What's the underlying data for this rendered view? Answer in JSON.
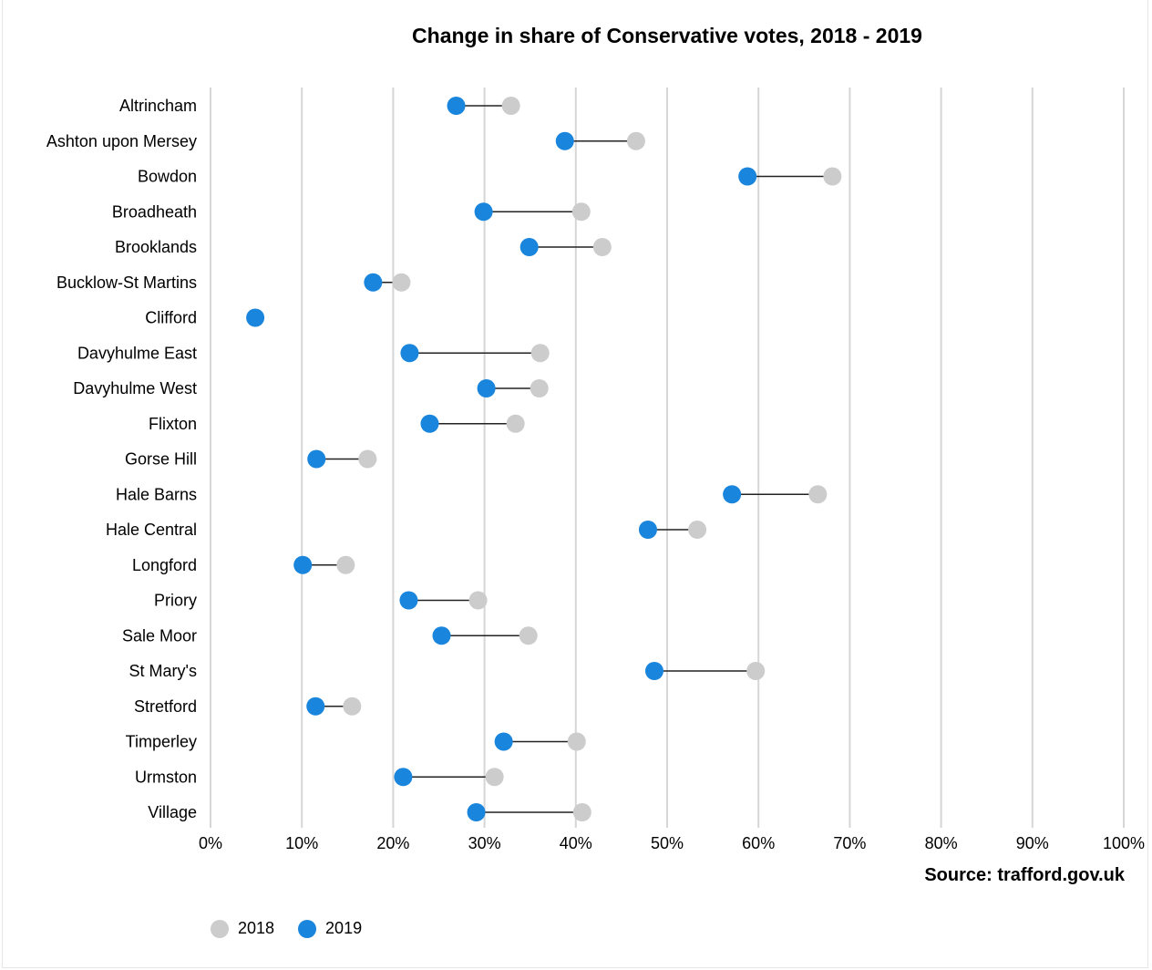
{
  "chart_data": {
    "type": "dumbbell",
    "title": "Change in share of Conservative votes, 2018 - 2019",
    "source": "Source: trafford.gov.uk",
    "xlim": [
      0,
      100
    ],
    "x_ticks": [
      "0%",
      "10%",
      "20%",
      "30%",
      "40%",
      "50%",
      "60%",
      "70%",
      "80%",
      "90%",
      "100%"
    ],
    "grid": true,
    "legend_position": "bottom-left",
    "series": [
      {
        "name": "2018",
        "color": "#cccccc"
      },
      {
        "name": "2019",
        "color": "#1a85dc"
      }
    ],
    "categories": [
      "Altrincham",
      "Ashton upon Mersey",
      "Bowdon",
      "Broadheath",
      "Brooklands",
      "Bucklow-St Martins",
      "Clifford",
      "Davyhulme East",
      "Davyhulme West",
      "Flixton",
      "Gorse Hill",
      "Hale Barns",
      "Hale Central",
      "Longford",
      "Priory",
      "Sale Moor",
      "St Mary's",
      "Stretford",
      "Timperley",
      "Urmston",
      "Village"
    ],
    "values_2018": [
      32.9,
      46.6,
      68.1,
      40.6,
      42.9,
      20.9,
      null,
      36.1,
      36.0,
      33.4,
      17.2,
      66.5,
      53.3,
      14.8,
      29.3,
      34.8,
      59.7,
      15.5,
      40.1,
      31.1,
      40.7
    ],
    "values_2019": [
      26.9,
      38.8,
      58.8,
      29.9,
      34.9,
      17.8,
      4.9,
      21.8,
      30.2,
      24.0,
      11.6,
      57.1,
      47.9,
      10.1,
      21.7,
      25.3,
      48.6,
      11.5,
      32.1,
      21.1,
      29.1
    ]
  }
}
